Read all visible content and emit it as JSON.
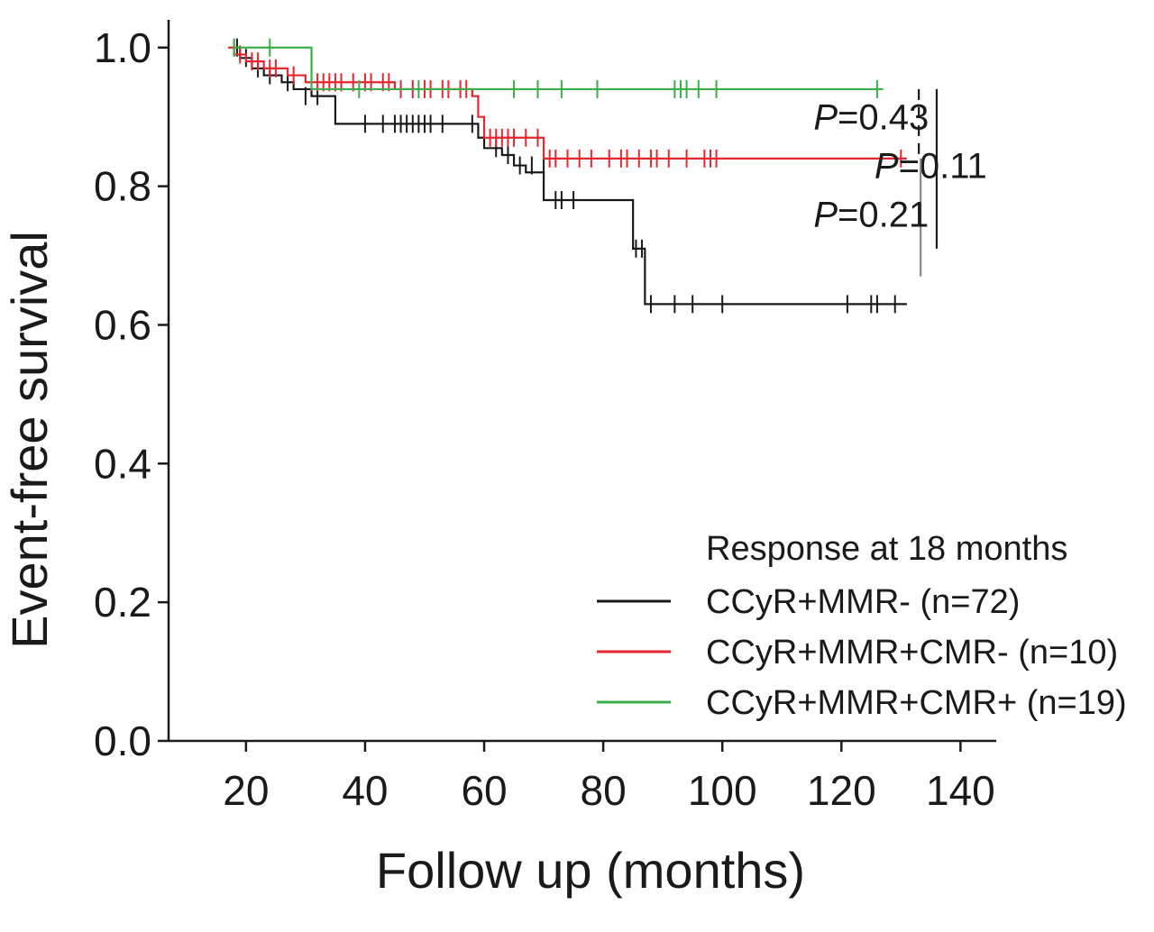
{
  "chart_data": {
    "type": "line",
    "subtype": "kaplan-meier",
    "xlabel": "Follow up (months)",
    "ylabel": "Event-free survival",
    "xlim": [
      7,
      146
    ],
    "ylim": [
      0,
      1.04
    ],
    "x_ticks": [
      "20",
      "40",
      "60",
      "80",
      "100",
      "120",
      "140"
    ],
    "y_ticks": [
      "0.0",
      "0.2",
      "0.4",
      "0.6",
      "0.8",
      "1.0"
    ],
    "legend": {
      "title": "Response at 18 months",
      "position": "bottom-right"
    },
    "series": [
      {
        "name": "CCyR+MMR- (n=72)",
        "color": "#1a1a1a",
        "steps": [
          [
            18,
            1.0
          ],
          [
            19,
            0.985
          ],
          [
            21,
            0.97
          ],
          [
            23,
            0.96
          ],
          [
            26,
            0.95
          ],
          [
            28,
            0.94
          ],
          [
            31,
            0.93
          ],
          [
            35,
            0.89
          ],
          [
            59,
            0.87
          ],
          [
            60,
            0.855
          ],
          [
            63,
            0.845
          ],
          [
            65,
            0.83
          ],
          [
            67,
            0.82
          ],
          [
            70,
            0.78
          ],
          [
            85,
            0.71
          ],
          [
            87,
            0.63
          ],
          [
            131,
            0.63
          ]
        ],
        "censored": [
          [
            18.5,
            1.0
          ],
          [
            20,
            0.985
          ],
          [
            22,
            0.97
          ],
          [
            24,
            0.96
          ],
          [
            27,
            0.95
          ],
          [
            30,
            0.93
          ],
          [
            32,
            0.93
          ],
          [
            40,
            0.89
          ],
          [
            43,
            0.89
          ],
          [
            45,
            0.89
          ],
          [
            46,
            0.89
          ],
          [
            47,
            0.89
          ],
          [
            48,
            0.89
          ],
          [
            49,
            0.89
          ],
          [
            50,
            0.89
          ],
          [
            51,
            0.89
          ],
          [
            53,
            0.89
          ],
          [
            58,
            0.89
          ],
          [
            62,
            0.855
          ],
          [
            64,
            0.845
          ],
          [
            66,
            0.83
          ],
          [
            68,
            0.83
          ],
          [
            70,
            0.83
          ],
          [
            72,
            0.78
          ],
          [
            73,
            0.78
          ],
          [
            75,
            0.78
          ],
          [
            85.5,
            0.71
          ],
          [
            86.5,
            0.71
          ],
          [
            88,
            0.63
          ],
          [
            92,
            0.63
          ],
          [
            95,
            0.63
          ],
          [
            100,
            0.63
          ],
          [
            121,
            0.63
          ],
          [
            125,
            0.63
          ],
          [
            126,
            0.63
          ],
          [
            129,
            0.63
          ]
        ]
      },
      {
        "name": "CCyR+MMR+CMR- (n=10)",
        "color": "#e8262f",
        "steps": [
          [
            17,
            1.0
          ],
          [
            18,
            0.99
          ],
          [
            20,
            0.98
          ],
          [
            23,
            0.97
          ],
          [
            27,
            0.96
          ],
          [
            30,
            0.95
          ],
          [
            45,
            0.94
          ],
          [
            58,
            0.93
          ],
          [
            59,
            0.9
          ],
          [
            60,
            0.87
          ],
          [
            70,
            0.84
          ],
          [
            131,
            0.84
          ]
        ],
        "censored": [
          [
            18,
            1.0
          ],
          [
            19,
            0.99
          ],
          [
            21,
            0.98
          ],
          [
            22,
            0.98
          ],
          [
            24,
            0.97
          ],
          [
            25,
            0.97
          ],
          [
            28,
            0.96
          ],
          [
            31,
            0.95
          ],
          [
            32,
            0.95
          ],
          [
            33,
            0.95
          ],
          [
            34,
            0.95
          ],
          [
            35,
            0.95
          ],
          [
            36,
            0.95
          ],
          [
            38,
            0.95
          ],
          [
            40,
            0.95
          ],
          [
            41,
            0.95
          ],
          [
            43,
            0.95
          ],
          [
            44,
            0.95
          ],
          [
            46,
            0.94
          ],
          [
            48,
            0.94
          ],
          [
            50,
            0.94
          ],
          [
            51,
            0.94
          ],
          [
            53,
            0.94
          ],
          [
            54,
            0.94
          ],
          [
            56,
            0.94
          ],
          [
            57,
            0.94
          ],
          [
            61,
            0.87
          ],
          [
            62,
            0.87
          ],
          [
            63,
            0.87
          ],
          [
            64,
            0.87
          ],
          [
            65,
            0.87
          ],
          [
            67,
            0.87
          ],
          [
            69,
            0.87
          ],
          [
            71,
            0.84
          ],
          [
            72,
            0.84
          ],
          [
            74,
            0.84
          ],
          [
            76,
            0.84
          ],
          [
            78,
            0.84
          ],
          [
            81,
            0.84
          ],
          [
            83,
            0.84
          ],
          [
            84,
            0.84
          ],
          [
            86,
            0.84
          ],
          [
            88,
            0.84
          ],
          [
            89,
            0.84
          ],
          [
            91,
            0.84
          ],
          [
            94,
            0.84
          ],
          [
            97,
            0.84
          ],
          [
            98,
            0.84
          ],
          [
            99,
            0.84
          ],
          [
            130,
            0.84
          ]
        ]
      },
      {
        "name": "CCyR+MMR+CMR+ (n=19)",
        "color": "#3aae49",
        "steps": [
          [
            18,
            1.0
          ],
          [
            31,
            0.94
          ],
          [
            127,
            0.94
          ]
        ],
        "censored": [
          [
            18,
            1.0
          ],
          [
            24,
            1.0
          ],
          [
            39,
            0.94
          ],
          [
            49,
            0.94
          ],
          [
            65,
            0.94
          ],
          [
            69,
            0.94
          ],
          [
            73,
            0.94
          ],
          [
            79,
            0.94
          ],
          [
            92,
            0.94
          ],
          [
            93,
            0.94
          ],
          [
            94,
            0.94
          ],
          [
            96,
            0.94
          ],
          [
            99,
            0.94
          ],
          [
            126,
            0.94
          ]
        ]
      }
    ],
    "annotations": [
      {
        "label": "P=0.43",
        "prefix": "P",
        "value": "=0.43",
        "x": 125,
        "y": 0.9,
        "bracket_from": 0.94,
        "bracket_to": 0.84,
        "bracket_x": 133,
        "bracket_style": "dashed"
      },
      {
        "label": "P=0.11",
        "prefix": "P",
        "value": "=0.11",
        "x": 135,
        "y": 0.83,
        "bracket_from": 0.94,
        "bracket_to": 0.71,
        "bracket_x": 136,
        "bracket_style": "solid"
      },
      {
        "label": "P=0.21",
        "prefix": "P",
        "value": "=0.21",
        "x": 125,
        "y": 0.76,
        "bracket_from": 0.84,
        "bracket_to": 0.67,
        "bracket_x": 133.3,
        "bracket_style": "solid-gray"
      }
    ]
  }
}
